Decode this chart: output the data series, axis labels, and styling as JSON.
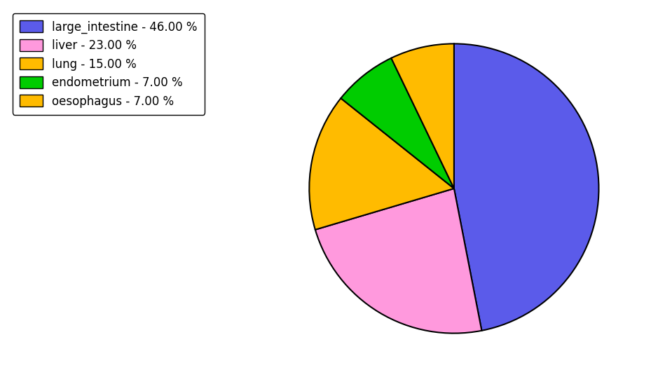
{
  "labels": [
    "large_intestine",
    "liver",
    "lung",
    "endometrium",
    "oesophagus"
  ],
  "values": [
    46.0,
    23.0,
    15.0,
    7.0,
    7.0
  ],
  "colors": [
    "#5b5bea",
    "#ff99dd",
    "#ffbb00",
    "#00cc00",
    "#ffbb00"
  ],
  "legend_labels": [
    "large_intestine - 46.00 %",
    "liver - 23.00 %",
    "lung - 15.00 %",
    "endometrium - 7.00 %",
    "oesophagus - 7.00 %"
  ],
  "startangle": 90,
  "legend_fontsize": 12,
  "background_color": "#ffffff"
}
